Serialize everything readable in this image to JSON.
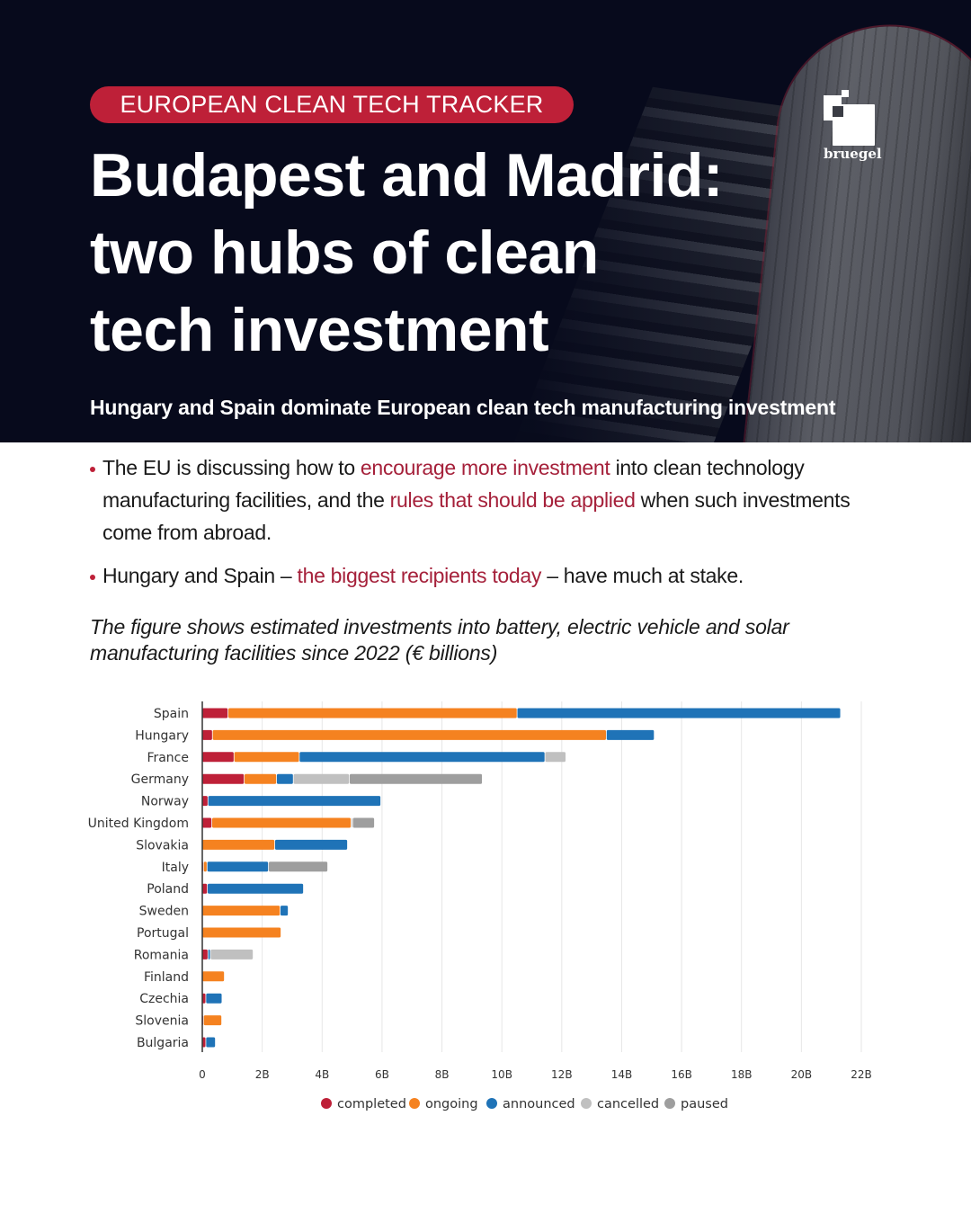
{
  "header": {
    "tag": "EUROPEAN CLEAN TECH TRACKER",
    "title_lines": [
      "Budapest and Madrid:",
      "two hubs of clean",
      "tech investment"
    ],
    "subtitle": "Hungary and Spain dominate European clean tech manufacturing investment",
    "logo_text": "bruegel"
  },
  "bullets": [
    {
      "parts": [
        {
          "text": "The EU is discussing how to ",
          "highlight": false
        },
        {
          "text": "encourage more investment",
          "highlight": true
        },
        {
          "text": " into clean technology manufacturing facilities, and the ",
          "highlight": false
        },
        {
          "text": "rules that should be applied",
          "highlight": true
        },
        {
          "text": " when such investments come from abroad.",
          "highlight": false
        }
      ]
    },
    {
      "parts": [
        {
          "text": "Hungary and Spain – ",
          "highlight": false
        },
        {
          "text": "the biggest recipients today",
          "highlight": true
        },
        {
          "text": " – have much at stake.",
          "highlight": false
        }
      ]
    }
  ],
  "caption": "The figure shows estimated investments into battery, electric vehicle and solar manufacturing facilities since 2022 (€ billions)",
  "colors": {
    "brand_red": "#be2038",
    "highlight_text": "#a5203a"
  },
  "chart_data": {
    "type": "bar",
    "orientation": "horizontal",
    "stacked": true,
    "title": "",
    "xlabel": "",
    "ylabel": "",
    "xlim": [
      0,
      22
    ],
    "x_ticks": [
      0,
      2,
      4,
      6,
      8,
      10,
      12,
      14,
      16,
      18,
      20,
      22
    ],
    "x_tick_labels": [
      "0",
      "2B",
      "4B",
      "6B",
      "8B",
      "10B",
      "12B",
      "14B",
      "16B",
      "18B",
      "20B",
      "22B"
    ],
    "grid": true,
    "legend_position": "bottom",
    "categories": [
      "Spain",
      "Hungary",
      "France",
      "Germany",
      "Norway",
      "United Kingdom",
      "Slovakia",
      "Italy",
      "Poland",
      "Sweden",
      "Portugal",
      "Romania",
      "Finland",
      "Czechia",
      "Slovenia",
      "Bulgaria"
    ],
    "series": [
      {
        "name": "completed",
        "color": "#be2038",
        "values": [
          0.87,
          0.35,
          1.07,
          1.41,
          0.2,
          0.33,
          0,
          0.05,
          0.18,
          0,
          0,
          0.2,
          0,
          0.13,
          0.05,
          0.13
        ]
      },
      {
        "name": "ongoing",
        "color": "#f58220",
        "values": [
          9.65,
          13.15,
          2.18,
          1.08,
          0,
          4.65,
          2.43,
          0.12,
          0,
          2.61,
          2.64,
          0,
          0.75,
          0,
          0.61,
          0
        ]
      },
      {
        "name": "announced",
        "color": "#1f73b7",
        "values": [
          10.8,
          1.6,
          8.2,
          0.56,
          5.77,
          0,
          2.43,
          2.05,
          3.21,
          0.27,
          0,
          0.08,
          0,
          0.54,
          0,
          0.32
        ]
      },
      {
        "name": "cancelled",
        "color": "#c0c0c0",
        "values": [
          0,
          0,
          0.7,
          1.87,
          0,
          0.05,
          0,
          0,
          0,
          0,
          0,
          1.43,
          0,
          0,
          0,
          0
        ]
      },
      {
        "name": "paused",
        "color": "#9e9e9e",
        "values": [
          0,
          0,
          0,
          4.44,
          0,
          0.73,
          0,
          1.98,
          0,
          0,
          0,
          0,
          0,
          0,
          0,
          0
        ]
      }
    ]
  }
}
